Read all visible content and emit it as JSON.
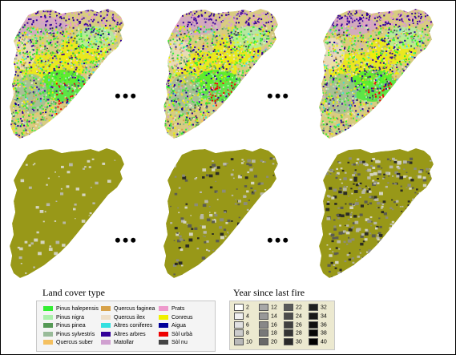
{
  "ellipsis": "•••",
  "legend_landcover": {
    "title": "Land cover type",
    "items": [
      {
        "label": "Pinus halepensis",
        "color": "#33ee33"
      },
      {
        "label": "Pinus nigra",
        "color": "#aaf0aa"
      },
      {
        "label": "Pinus pinea",
        "color": "#559955"
      },
      {
        "label": "Pinus sylvestris",
        "color": "#99bb99"
      },
      {
        "label": "Quercus suber",
        "color": "#f4c060"
      },
      {
        "label": "Quercus faginea",
        "color": "#d7a24a"
      },
      {
        "label": "Quercus ilex",
        "color": "#eedfc8"
      },
      {
        "label": "Altres coniferes",
        "color": "#33e0e0"
      },
      {
        "label": "Altres arbres",
        "color": "#330099"
      },
      {
        "label": "Matollar",
        "color": "#d0a0d0"
      },
      {
        "label": "Prats",
        "color": "#ee99cc"
      },
      {
        "label": "Conreus",
        "color": "#f0f000"
      },
      {
        "label": "Aigua",
        "color": "#000099"
      },
      {
        "label": "Sòl urbà",
        "color": "#ee0000"
      },
      {
        "label": "Sòl nu",
        "color": "#444444"
      }
    ]
  },
  "legend_fire": {
    "title": "Year since last fire",
    "items": [
      {
        "label": "2",
        "color": "#ffffff"
      },
      {
        "label": "4",
        "color": "#f0f0f0"
      },
      {
        "label": "6",
        "color": "#e0e0e0"
      },
      {
        "label": "8",
        "color": "#cccccc"
      },
      {
        "label": "10",
        "color": "#b8b8b8"
      },
      {
        "label": "12",
        "color": "#a8a8a8"
      },
      {
        "label": "14",
        "color": "#989898"
      },
      {
        "label": "16",
        "color": "#888888"
      },
      {
        "label": "18",
        "color": "#787878"
      },
      {
        "label": "20",
        "color": "#686868"
      },
      {
        "label": "22",
        "color": "#5a5a5a"
      },
      {
        "label": "24",
        "color": "#4c4c4c"
      },
      {
        "label": "26",
        "color": "#404040"
      },
      {
        "label": "28",
        "color": "#343434"
      },
      {
        "label": "30",
        "color": "#2a2a2a"
      },
      {
        "label": "32",
        "color": "#202020"
      },
      {
        "label": "34",
        "color": "#181818"
      },
      {
        "label": "36",
        "color": "#101010"
      },
      {
        "label": "38",
        "color": "#080808"
      },
      {
        "label": "40",
        "color": "#000000"
      }
    ]
  },
  "colors": {
    "region_fill": "#989818",
    "region_fill_dark": "#808010",
    "landcover_base": "#d8cc80",
    "fire_patch_light": "#d4d4c0",
    "fire_patch_mid": "#8c8c7c",
    "fire_patch_dark": "#2c2c24"
  }
}
